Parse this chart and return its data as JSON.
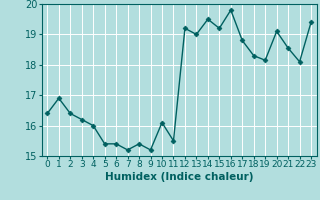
{
  "x": [
    0,
    1,
    2,
    3,
    4,
    5,
    6,
    7,
    8,
    9,
    10,
    11,
    12,
    13,
    14,
    15,
    16,
    17,
    18,
    19,
    20,
    21,
    22,
    23
  ],
  "y": [
    16.4,
    16.9,
    16.4,
    16.2,
    16.0,
    15.4,
    15.4,
    15.2,
    15.4,
    15.2,
    16.1,
    15.5,
    19.2,
    19.0,
    19.5,
    19.2,
    19.8,
    18.8,
    18.3,
    18.15,
    19.1,
    18.55,
    18.1,
    19.4
  ],
  "line_color": "#006060",
  "marker": "D",
  "markersize": 2.5,
  "linewidth": 1.0,
  "bg_color": "#b2dede",
  "grid_color": "#ffffff",
  "xlabel": "Humidex (Indice chaleur)",
  "xlabel_fontsize": 7.5,
  "xlabel_weight": "bold",
  "ylim": [
    15,
    20
  ],
  "xlim": [
    -0.5,
    23.5
  ],
  "yticks": [
    15,
    16,
    17,
    18,
    19,
    20
  ],
  "xticks": [
    0,
    1,
    2,
    3,
    4,
    5,
    6,
    7,
    8,
    9,
    10,
    11,
    12,
    13,
    14,
    15,
    16,
    17,
    18,
    19,
    20,
    21,
    22,
    23
  ],
  "tick_fontsize": 6.5,
  "ytick_fontsize": 7.0
}
